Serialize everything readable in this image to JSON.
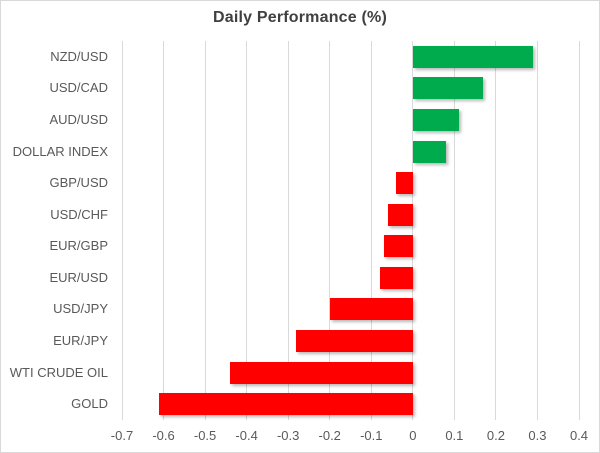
{
  "title": "Daily Performance (%)",
  "colors": {
    "positive_bar": "#00AB4E",
    "negative_bar": "#FF0000",
    "gridline": "#D9D9D9",
    "title_text": "#404040",
    "axis_text": "#595959",
    "frame_border": "#D9D9D9",
    "background": "#FFFFFF"
  },
  "chart_data": {
    "type": "bar",
    "orientation": "horizontal",
    "title": "Daily Performance (%)",
    "categories": [
      "NZD/USD",
      "USD/CAD",
      "AUD/USD",
      "DOLLAR INDEX",
      "GBP/USD",
      "USD/CHF",
      "EUR/GBP",
      "EUR/USD",
      "USD/JPY",
      "EUR/JPY",
      "WTI CRUDE OIL",
      "GOLD"
    ],
    "values": [
      0.29,
      0.17,
      0.11,
      0.08,
      -0.04,
      -0.06,
      -0.07,
      -0.08,
      -0.2,
      -0.28,
      -0.44,
      -0.61
    ],
    "xlabel": "",
    "ylabel": "",
    "xlim": [
      -0.7,
      0.4
    ],
    "xtick_step": 0.1,
    "xtick_labels": [
      "-0.7",
      "-0.6",
      "-0.5",
      "-0.4",
      "-0.3",
      "-0.2",
      "-0.1",
      "0",
      "0.1",
      "0.2",
      "0.3",
      "0.4"
    ],
    "grid": true,
    "legend": false
  }
}
